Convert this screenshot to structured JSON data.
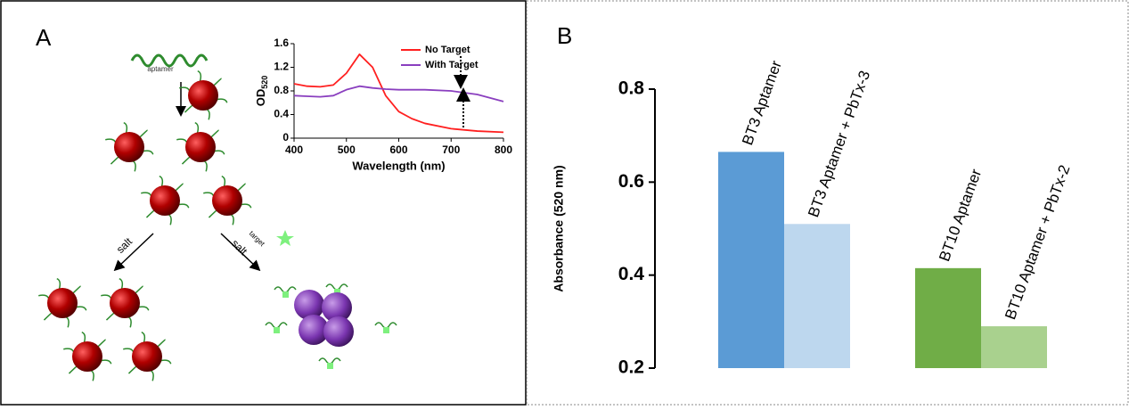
{
  "diagram": {
    "panel_a": "A",
    "panel_b": "B",
    "aptamer": "aptamer",
    "salt_left": "salt",
    "salt_right": "salt",
    "target": "target"
  },
  "chart_data": [
    {
      "type": "line",
      "xlabel": "Wavelength (nm)",
      "ylabel": "OD",
      "ylabel_subscript": "520",
      "x": [
        400,
        425,
        450,
        475,
        500,
        525,
        550,
        575,
        600,
        625,
        650,
        700,
        750,
        800
      ],
      "series": [
        {
          "name": "No Target",
          "color": "#ff2020",
          "values": [
            0.92,
            0.88,
            0.87,
            0.9,
            1.1,
            1.42,
            1.2,
            0.72,
            0.45,
            0.33,
            0.25,
            0.16,
            0.12,
            0.1
          ]
        },
        {
          "name": "With Target",
          "color": "#8a3fbf",
          "values": [
            0.72,
            0.71,
            0.7,
            0.72,
            0.82,
            0.88,
            0.85,
            0.83,
            0.82,
            0.82,
            0.82,
            0.8,
            0.74,
            0.62
          ]
        }
      ],
      "xlim": [
        400,
        800
      ],
      "xticks": [
        400,
        500,
        600,
        700,
        800
      ],
      "ylim": [
        0,
        1.6
      ],
      "yticks": [
        0,
        0.4,
        0.8,
        1.2,
        1.6
      ]
    },
    {
      "type": "bar",
      "ylabel": "Absorbance (520 nm)",
      "categories": [
        "BT3 Aptamer",
        "BT3 Aptamer + PbTx-3",
        "BT10 Aptamer",
        "BT10 Aptamer + PbTx-2"
      ],
      "values": [
        0.665,
        0.51,
        0.415,
        0.29
      ],
      "colors": [
        "#5b9bd5",
        "#bdd7ee",
        "#70ad47",
        "#a9d18e"
      ],
      "ylim": [
        0.2,
        0.8
      ],
      "yticks": [
        0.2,
        0.4,
        0.6,
        0.8
      ]
    }
  ]
}
